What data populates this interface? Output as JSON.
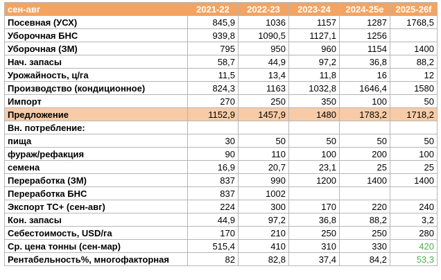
{
  "table": {
    "header": {
      "label": "сен-авг",
      "years": [
        "2021-22",
        "2022-23",
        "2023-24",
        "2024-25e",
        "2025-26f"
      ]
    },
    "rows": [
      {
        "label": "Посевная (УСХ)",
        "values": [
          "845,9",
          "1036",
          "1157",
          "1287",
          "1768,5"
        ]
      },
      {
        "label": "Уборочная БНС",
        "values": [
          "939,8",
          "1090,5",
          "1127,1",
          "1256",
          ""
        ]
      },
      {
        "label": "Уборочная (ЗМ)",
        "values": [
          "795",
          "950",
          "960",
          "1154",
          "1400"
        ]
      },
      {
        "label": "Нач. запасы",
        "values": [
          "58,7",
          "44,9",
          "97,2",
          "36,8",
          "88,2"
        ]
      },
      {
        "label": "Урожайность, ц/га",
        "values": [
          "11,5",
          "13,4",
          "11,8",
          "16",
          "12"
        ]
      },
      {
        "label": "Производство (кондиционное)",
        "values": [
          "824,3",
          "1163",
          "1032,8",
          "1646,4",
          "1580"
        ]
      },
      {
        "label": "Импорт",
        "values": [
          "270",
          "250",
          "350",
          "100",
          "50"
        ]
      },
      {
        "label": "Предложение",
        "values": [
          "1152,9",
          "1457,9",
          "1480",
          "1783,2",
          "1718,2"
        ]
      },
      {
        "label": "Вн. потребление:",
        "values": [
          "",
          "",
          "",
          "",
          ""
        ]
      },
      {
        "label": "пища",
        "values": [
          "30",
          "50",
          "50",
          "50",
          "50"
        ]
      },
      {
        "label": "фураж/рефакция",
        "values": [
          "90",
          "110",
          "100",
          "200",
          "100"
        ]
      },
      {
        "label": "семена",
        "values": [
          "16,9",
          "20,7",
          "23,1",
          "25",
          "25"
        ]
      },
      {
        "label": "Переработка (ЗМ)",
        "values": [
          "837",
          "990",
          "1200",
          "1400",
          "1400"
        ]
      },
      {
        "label": "Переработка БНС",
        "values": [
          "837",
          "1002",
          "",
          "",
          ""
        ]
      },
      {
        "label": "Экспорт ТС+ (сен-авг)",
        "values": [
          "224",
          "300",
          "170",
          "220",
          "240"
        ]
      },
      {
        "label": "Кон. запасы",
        "values": [
          "44,9",
          "97,2",
          "36,8",
          "88,2",
          "3,2"
        ]
      },
      {
        "label": "Себестоимость, USD/га",
        "values": [
          "170",
          "210",
          "250",
          "250",
          "280"
        ]
      },
      {
        "label": "Ср. цена тонны (сен-мар)",
        "values": [
          "515,4",
          "410",
          "310",
          "330",
          "420"
        ]
      },
      {
        "label": "Рентабельность%, многофакторная",
        "values": [
          "82",
          "82,8",
          "37,4",
          "84,2",
          "53,3"
        ]
      }
    ]
  },
  "colors": {
    "header_bg": "#f4a460",
    "header_text": "#ffffff",
    "highlight_row_bg": "#f8cba6",
    "highlight_value_text": "#4caf50",
    "grid_line": "#b5b5b5"
  }
}
